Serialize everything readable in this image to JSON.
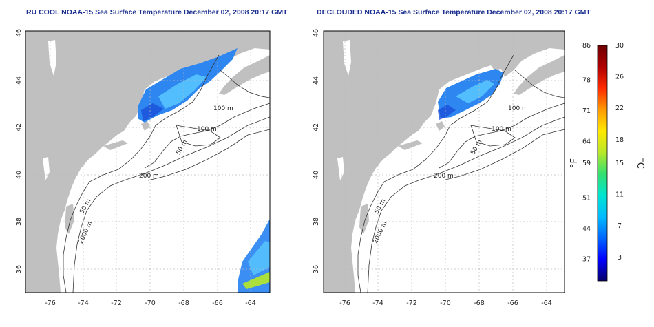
{
  "maps": [
    {
      "title": "RU COOL NOAA-15 Sea Surface Temperature December 02, 2008 20:17 GMT",
      "x_ticks": [
        "-76",
        "-74",
        "-72",
        "-70",
        "-68",
        "-66",
        "-64"
      ],
      "y_ticks": [
        "46",
        "44",
        "42",
        "40",
        "38",
        "36"
      ],
      "contour_labels": [
        "100 m",
        "100 m",
        "50 m",
        "200 m",
        "50 m",
        "2000 m"
      ]
    },
    {
      "title": "DECLOUDED NOAA-15 Sea Surface Temperature December 02, 2008 20:17 GMT",
      "x_ticks": [
        "-76",
        "-74",
        "-72",
        "-70",
        "-68",
        "-66",
        "-64"
      ],
      "y_ticks": [
        "46",
        "44",
        "42",
        "40",
        "38",
        "36"
      ],
      "contour_labels": [
        "100 m",
        "100 m",
        "50 m",
        "200 m",
        "50 m",
        "2000 m"
      ]
    }
  ],
  "colorbar": {
    "f_label": "°F",
    "c_label": "°C",
    "f_ticks": [
      "86",
      "78",
      "71",
      "64",
      "59",
      "51",
      "44",
      "37"
    ],
    "c_ticks": [
      "30",
      "26",
      "22",
      "18",
      "15",
      "11",
      "7",
      "3"
    ],
    "f_values": [
      86,
      78,
      71,
      64,
      59,
      51,
      44,
      37
    ],
    "c_values": [
      30,
      26,
      22,
      18,
      15,
      11,
      7,
      3
    ],
    "c_range": [
      0,
      30
    ],
    "colors": [
      "#08006b",
      "#0000ff",
      "#0066ff",
      "#00bbff",
      "#00e5d0",
      "#33e070",
      "#b8e828",
      "#ffe800",
      "#ff9a00",
      "#ff2a00",
      "#b00000",
      "#6e0000"
    ]
  },
  "colors": {
    "land": "#c0c0c0",
    "ocean": "#ffffff",
    "sst_main": "#2e86f0",
    "sst_light": "#59c8ff",
    "sst_dark": "#1a4fd8",
    "title": "#1b2f8f"
  }
}
